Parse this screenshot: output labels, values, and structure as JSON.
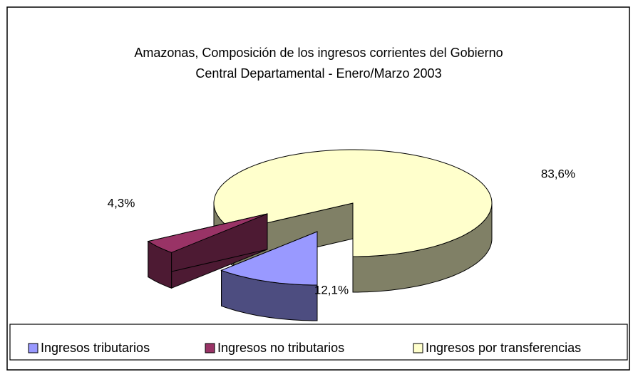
{
  "chart_data": {
    "type": "pie3d",
    "title": "Amazonas, Composición de los ingresos corrientes del Gobierno",
    "subtitle": "Central Departamental - Enero/Marzo 2003",
    "categories": [
      "Ingresos tributarios",
      "Ingresos no tributarios",
      "Ingresos por transferencias"
    ],
    "values": [
      12.1,
      4.3,
      83.6
    ],
    "value_labels": [
      "12,1%",
      "4,3%",
      "83,6%"
    ],
    "colors": [
      "#9999ff",
      "#993366",
      "#ffffcc"
    ],
    "legend": "bottom"
  }
}
